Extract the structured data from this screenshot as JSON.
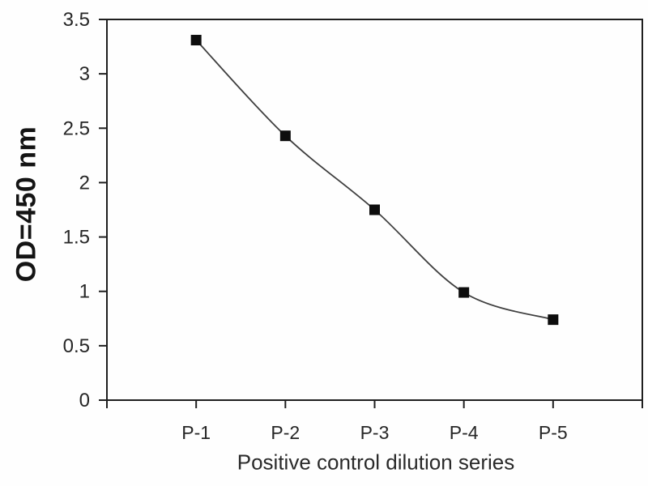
{
  "chart_data": {
    "type": "line",
    "categories": [
      "P-1",
      "P-2",
      "P-3",
      "P-4",
      "P-5"
    ],
    "values": [
      3.31,
      2.43,
      1.75,
      0.99,
      0.74
    ],
    "title": "",
    "xlabel": "Positive control dilution series",
    "ylabel": "OD=450 nm",
    "ylim": [
      0,
      3.5
    ],
    "yticks": [
      0,
      0.5,
      1,
      1.5,
      2,
      2.5,
      3,
      3.5
    ],
    "ytick_labels": [
      "0",
      "0.5",
      "1",
      "1.5",
      "2",
      "2.5",
      "3",
      "3.5"
    ],
    "grid": false,
    "legend": "none",
    "marker": "square",
    "line_smoothing": true,
    "plot_frame": true,
    "colors": {
      "line": "#3f3f3f",
      "marker": "#0d0d0d",
      "axis": "#1f1f1f",
      "text": "#262626",
      "background": "#fefefe"
    }
  }
}
